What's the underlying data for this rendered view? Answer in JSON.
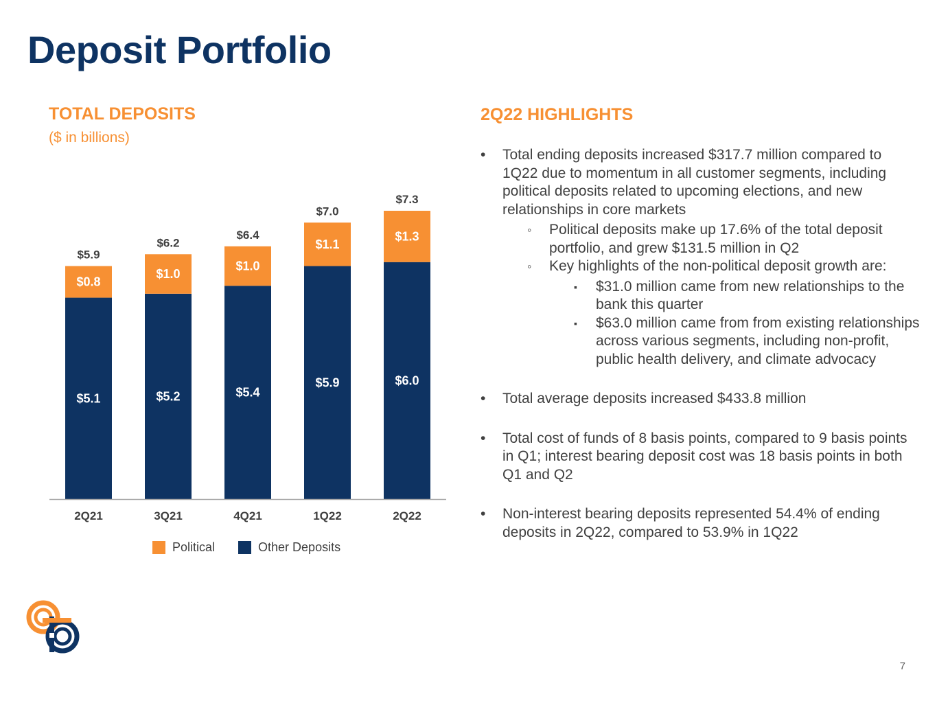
{
  "slide": {
    "title": "Deposit Portfolio",
    "page_number": "7"
  },
  "left_panel": {
    "heading": "TOTAL DEPOSITS",
    "subheading": "($ in billions)"
  },
  "right_panel": {
    "heading": "2Q22 HIGHLIGHTS",
    "bullets": [
      {
        "text": "Total ending deposits increased $317.7 million compared to 1Q22 due to momentum in all customer segments, including political deposits related to upcoming elections, and new relationships in core markets",
        "sub": [
          {
            "text": "Political deposits make up 17.6% of the total deposit portfolio, and grew $131.5 million in Q2"
          },
          {
            "text": "Key highlights of the non-political deposit growth are:",
            "sub": [
              "$31.0 million came from new relationships to the bank this quarter",
              "$63.0 million came from from existing relationships across various segments, including non-profit, public health delivery, and climate advocacy"
            ]
          }
        ]
      },
      {
        "text": "Total average deposits increased $433.8 million"
      },
      {
        "text": "Total cost of funds of 8 basis points, compared to 9 basis points in Q1; interest bearing deposit cost was 18 basis points in both Q1 and Q2"
      },
      {
        "text": "Non-interest bearing deposits represented 54.4% of ending deposits in 2Q22, compared to 53.9% in 1Q22"
      }
    ]
  },
  "chart_data": {
    "type": "bar",
    "stacked": true,
    "categories": [
      "2Q21",
      "3Q21",
      "4Q21",
      "1Q22",
      "2Q22"
    ],
    "series": [
      {
        "name": "Other Deposits",
        "color": "#0e3362",
        "values": [
          5.1,
          5.2,
          5.4,
          5.9,
          6.0
        ],
        "labels": [
          "$5.1",
          "$5.2",
          "$5.4",
          "$5.9",
          "$6.0"
        ]
      },
      {
        "name": "Political",
        "color": "#f79033",
        "values": [
          0.8,
          1.0,
          1.0,
          1.1,
          1.3
        ],
        "labels": [
          "$0.8",
          "$1.0",
          "$1.0",
          "$1.1",
          "$1.3"
        ]
      }
    ],
    "totals": [
      5.9,
      6.2,
      6.4,
      7.0,
      7.3
    ],
    "total_labels": [
      "$5.9",
      "$6.2",
      "$6.4",
      "$7.0",
      "$7.3"
    ],
    "legend": {
      "placement": "bottom",
      "order": [
        "Political",
        "Other Deposits"
      ]
    },
    "grid": false,
    "ylim": [
      0,
      7.3
    ]
  },
  "logo": {
    "icon": "bank-logo-icon",
    "colors": [
      "#f79033",
      "#0e3362"
    ]
  }
}
